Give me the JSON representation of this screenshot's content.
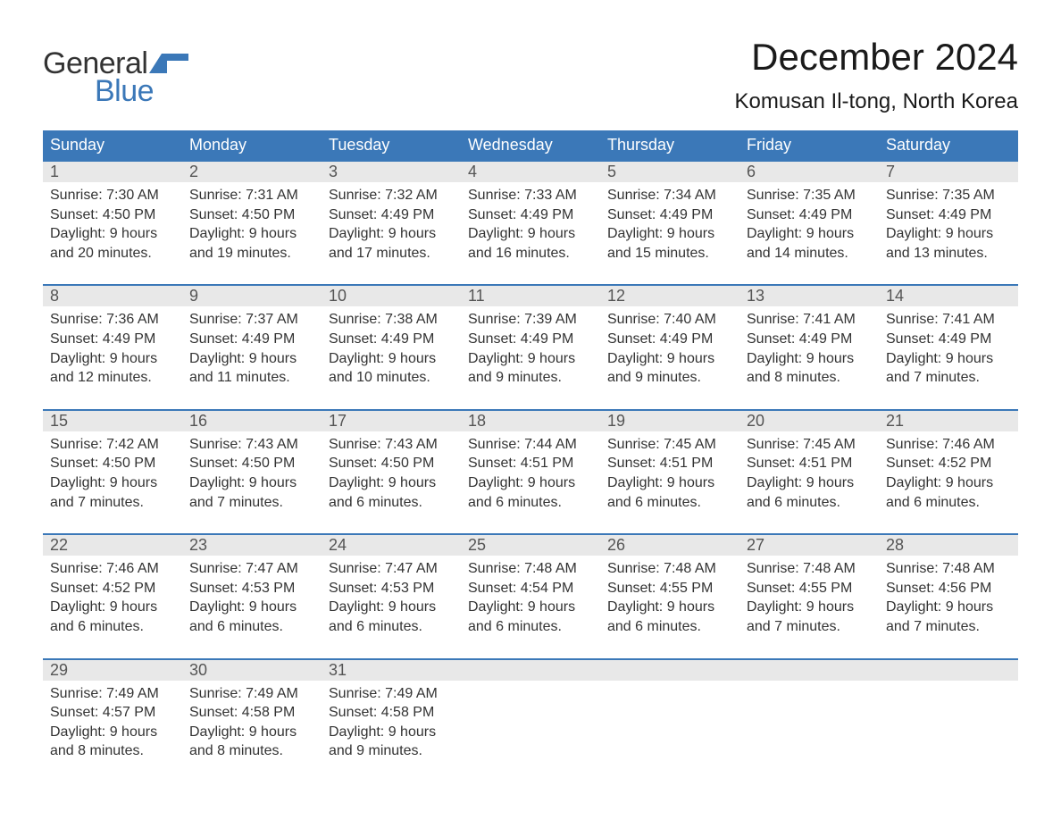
{
  "logo": {
    "general": "General",
    "blue": "Blue",
    "flag_color": "#3b78b8"
  },
  "title": {
    "month": "December 2024",
    "location": "Komusan Il-tong, North Korea"
  },
  "colors": {
    "header_bg": "#3b78b8",
    "daynum_bg": "#e8e8e8",
    "border": "#3b78b8",
    "text": "#333333",
    "title_text": "#1a1a1a",
    "daynum_text": "#555555",
    "white": "#ffffff"
  },
  "day_headers": [
    "Sunday",
    "Monday",
    "Tuesday",
    "Wednesday",
    "Thursday",
    "Friday",
    "Saturday"
  ],
  "weeks": [
    [
      {
        "num": "1",
        "sunrise": "Sunrise: 7:30 AM",
        "sunset": "Sunset: 4:50 PM",
        "day1": "Daylight: 9 hours",
        "day2": "and 20 minutes."
      },
      {
        "num": "2",
        "sunrise": "Sunrise: 7:31 AM",
        "sunset": "Sunset: 4:50 PM",
        "day1": "Daylight: 9 hours",
        "day2": "and 19 minutes."
      },
      {
        "num": "3",
        "sunrise": "Sunrise: 7:32 AM",
        "sunset": "Sunset: 4:49 PM",
        "day1": "Daylight: 9 hours",
        "day2": "and 17 minutes."
      },
      {
        "num": "4",
        "sunrise": "Sunrise: 7:33 AM",
        "sunset": "Sunset: 4:49 PM",
        "day1": "Daylight: 9 hours",
        "day2": "and 16 minutes."
      },
      {
        "num": "5",
        "sunrise": "Sunrise: 7:34 AM",
        "sunset": "Sunset: 4:49 PM",
        "day1": "Daylight: 9 hours",
        "day2": "and 15 minutes."
      },
      {
        "num": "6",
        "sunrise": "Sunrise: 7:35 AM",
        "sunset": "Sunset: 4:49 PM",
        "day1": "Daylight: 9 hours",
        "day2": "and 14 minutes."
      },
      {
        "num": "7",
        "sunrise": "Sunrise: 7:35 AM",
        "sunset": "Sunset: 4:49 PM",
        "day1": "Daylight: 9 hours",
        "day2": "and 13 minutes."
      }
    ],
    [
      {
        "num": "8",
        "sunrise": "Sunrise: 7:36 AM",
        "sunset": "Sunset: 4:49 PM",
        "day1": "Daylight: 9 hours",
        "day2": "and 12 minutes."
      },
      {
        "num": "9",
        "sunrise": "Sunrise: 7:37 AM",
        "sunset": "Sunset: 4:49 PM",
        "day1": "Daylight: 9 hours",
        "day2": "and 11 minutes."
      },
      {
        "num": "10",
        "sunrise": "Sunrise: 7:38 AM",
        "sunset": "Sunset: 4:49 PM",
        "day1": "Daylight: 9 hours",
        "day2": "and 10 minutes."
      },
      {
        "num": "11",
        "sunrise": "Sunrise: 7:39 AM",
        "sunset": "Sunset: 4:49 PM",
        "day1": "Daylight: 9 hours",
        "day2": "and 9 minutes."
      },
      {
        "num": "12",
        "sunrise": "Sunrise: 7:40 AM",
        "sunset": "Sunset: 4:49 PM",
        "day1": "Daylight: 9 hours",
        "day2": "and 9 minutes."
      },
      {
        "num": "13",
        "sunrise": "Sunrise: 7:41 AM",
        "sunset": "Sunset: 4:49 PM",
        "day1": "Daylight: 9 hours",
        "day2": "and 8 minutes."
      },
      {
        "num": "14",
        "sunrise": "Sunrise: 7:41 AM",
        "sunset": "Sunset: 4:49 PM",
        "day1": "Daylight: 9 hours",
        "day2": "and 7 minutes."
      }
    ],
    [
      {
        "num": "15",
        "sunrise": "Sunrise: 7:42 AM",
        "sunset": "Sunset: 4:50 PM",
        "day1": "Daylight: 9 hours",
        "day2": "and 7 minutes."
      },
      {
        "num": "16",
        "sunrise": "Sunrise: 7:43 AM",
        "sunset": "Sunset: 4:50 PM",
        "day1": "Daylight: 9 hours",
        "day2": "and 7 minutes."
      },
      {
        "num": "17",
        "sunrise": "Sunrise: 7:43 AM",
        "sunset": "Sunset: 4:50 PM",
        "day1": "Daylight: 9 hours",
        "day2": "and 6 minutes."
      },
      {
        "num": "18",
        "sunrise": "Sunrise: 7:44 AM",
        "sunset": "Sunset: 4:51 PM",
        "day1": "Daylight: 9 hours",
        "day2": "and 6 minutes."
      },
      {
        "num": "19",
        "sunrise": "Sunrise: 7:45 AM",
        "sunset": "Sunset: 4:51 PM",
        "day1": "Daylight: 9 hours",
        "day2": "and 6 minutes."
      },
      {
        "num": "20",
        "sunrise": "Sunrise: 7:45 AM",
        "sunset": "Sunset: 4:51 PM",
        "day1": "Daylight: 9 hours",
        "day2": "and 6 minutes."
      },
      {
        "num": "21",
        "sunrise": "Sunrise: 7:46 AM",
        "sunset": "Sunset: 4:52 PM",
        "day1": "Daylight: 9 hours",
        "day2": "and 6 minutes."
      }
    ],
    [
      {
        "num": "22",
        "sunrise": "Sunrise: 7:46 AM",
        "sunset": "Sunset: 4:52 PM",
        "day1": "Daylight: 9 hours",
        "day2": "and 6 minutes."
      },
      {
        "num": "23",
        "sunrise": "Sunrise: 7:47 AM",
        "sunset": "Sunset: 4:53 PM",
        "day1": "Daylight: 9 hours",
        "day2": "and 6 minutes."
      },
      {
        "num": "24",
        "sunrise": "Sunrise: 7:47 AM",
        "sunset": "Sunset: 4:53 PM",
        "day1": "Daylight: 9 hours",
        "day2": "and 6 minutes."
      },
      {
        "num": "25",
        "sunrise": "Sunrise: 7:48 AM",
        "sunset": "Sunset: 4:54 PM",
        "day1": "Daylight: 9 hours",
        "day2": "and 6 minutes."
      },
      {
        "num": "26",
        "sunrise": "Sunrise: 7:48 AM",
        "sunset": "Sunset: 4:55 PM",
        "day1": "Daylight: 9 hours",
        "day2": "and 6 minutes."
      },
      {
        "num": "27",
        "sunrise": "Sunrise: 7:48 AM",
        "sunset": "Sunset: 4:55 PM",
        "day1": "Daylight: 9 hours",
        "day2": "and 7 minutes."
      },
      {
        "num": "28",
        "sunrise": "Sunrise: 7:48 AM",
        "sunset": "Sunset: 4:56 PM",
        "day1": "Daylight: 9 hours",
        "day2": "and 7 minutes."
      }
    ],
    [
      {
        "num": "29",
        "sunrise": "Sunrise: 7:49 AM",
        "sunset": "Sunset: 4:57 PM",
        "day1": "Daylight: 9 hours",
        "day2": "and 8 minutes."
      },
      {
        "num": "30",
        "sunrise": "Sunrise: 7:49 AM",
        "sunset": "Sunset: 4:58 PM",
        "day1": "Daylight: 9 hours",
        "day2": "and 8 minutes."
      },
      {
        "num": "31",
        "sunrise": "Sunrise: 7:49 AM",
        "sunset": "Sunset: 4:58 PM",
        "day1": "Daylight: 9 hours",
        "day2": "and 9 minutes."
      },
      null,
      null,
      null,
      null
    ]
  ]
}
